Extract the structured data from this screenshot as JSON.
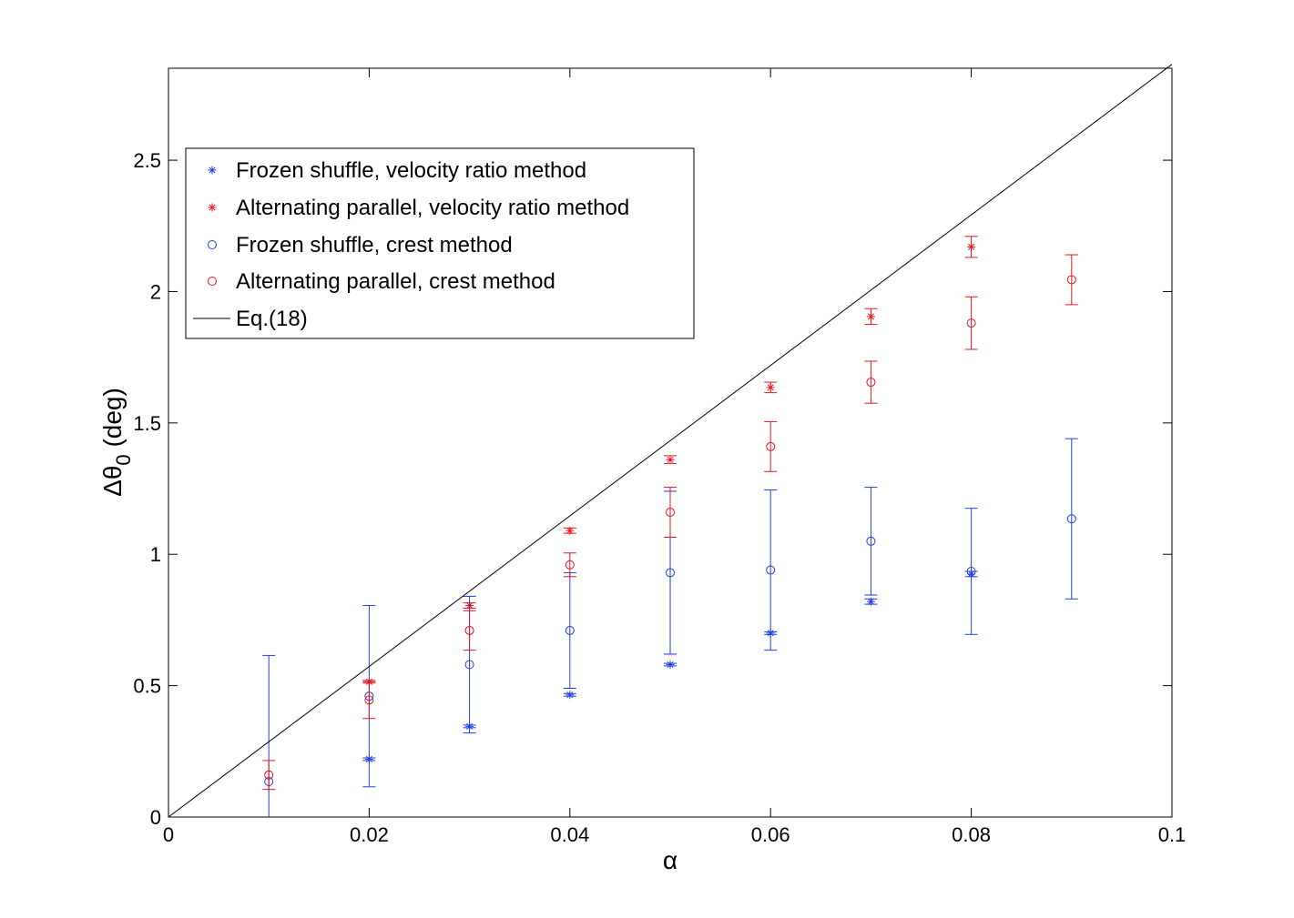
{
  "chart_data": {
    "type": "scatter",
    "title": "",
    "xlabel": "α",
    "ylabel_main": "Δθ",
    "ylabel_sub": "0",
    "ylabel_unit": " (deg)",
    "xlim": [
      0,
      0.1
    ],
    "ylim": [
      0,
      2.85
    ],
    "xticks": [
      0,
      0.02,
      0.04,
      0.06,
      0.08,
      0.1
    ],
    "xtick_labels": [
      "0",
      "0.02",
      "0.04",
      "0.06",
      "0.08",
      "0.1"
    ],
    "yticks": [
      0,
      0.5,
      1,
      1.5,
      2,
      2.5
    ],
    "ytick_labels": [
      "0",
      "0.5",
      "1",
      "1.5",
      "2",
      "2.5"
    ],
    "grid": false,
    "legend_position": "upper-left",
    "series": [
      {
        "name": "Frozen shuffle, velocity ratio method",
        "marker": "asterisk",
        "color": "#1f3fdf",
        "x": [
          0.02,
          0.03,
          0.04,
          0.05,
          0.06,
          0.07,
          0.08
        ],
        "y": [
          0.22,
          0.345,
          0.465,
          0.58,
          0.7,
          0.82,
          0.925
        ],
        "err": [
          0.005,
          0.005,
          0.005,
          0.005,
          0.005,
          0.01,
          0.01
        ]
      },
      {
        "name": "Alternating parallel, velocity ratio method",
        "marker": "asterisk",
        "color": "#e8141c",
        "x": [
          0.02,
          0.03,
          0.04,
          0.05,
          0.06,
          0.07,
          0.08
        ],
        "y": [
          0.515,
          0.805,
          1.09,
          1.36,
          1.635,
          1.905,
          2.17
        ],
        "err": [
          0.005,
          0.01,
          0.01,
          0.015,
          0.02,
          0.03,
          0.04
        ]
      },
      {
        "name": "Frozen shuffle, crest method",
        "marker": "circle",
        "color": "#1f3fdf",
        "x": [
          0.01,
          0.02,
          0.03,
          0.04,
          0.05,
          0.06,
          0.07,
          0.08,
          0.09
        ],
        "y": [
          0.135,
          0.46,
          0.58,
          0.71,
          0.93,
          0.94,
          1.05,
          0.935,
          1.135
        ],
        "err": [
          0.48,
          0.345,
          0.26,
          0.22,
          0.31,
          0.305,
          0.205,
          0.24,
          0.305
        ]
      },
      {
        "name": "Alternating parallel, crest method",
        "marker": "circle",
        "color": "#e8141c",
        "x": [
          0.01,
          0.02,
          0.03,
          0.04,
          0.05,
          0.06,
          0.07,
          0.08,
          0.09
        ],
        "y": [
          0.16,
          0.445,
          0.71,
          0.96,
          1.16,
          1.41,
          1.655,
          1.88,
          2.045
        ],
        "err": [
          0.055,
          0.07,
          0.075,
          0.045,
          0.095,
          0.095,
          0.08,
          0.1,
          0.095
        ]
      },
      {
        "name": "Eq.(18)",
        "marker": "line",
        "color": "#000000",
        "x": [
          0,
          0.1
        ],
        "y": [
          0,
          2.865
        ],
        "err": []
      }
    ]
  }
}
